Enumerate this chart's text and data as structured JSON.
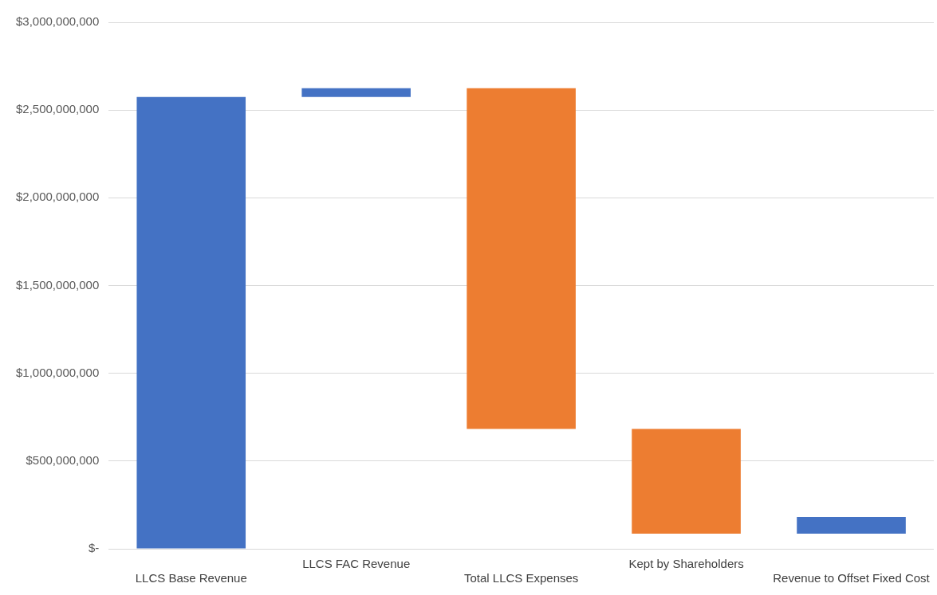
{
  "chart_data": {
    "type": "bar",
    "categories": [
      "LLCS Base Revenue",
      "LLCS FAC Revenue",
      "Total LLCS Expenses",
      "Kept by Shareholders",
      "Revenue to Offset Fixed Cost"
    ],
    "base": [
      0,
      2575000000,
      683000000,
      86000000,
      86000000
    ],
    "values": [
      2575000000,
      50000000,
      1942000000,
      597000000,
      95000000
    ],
    "colors": [
      "#4472c4",
      "#4472c4",
      "#ed7d31",
      "#ed7d31",
      "#4472c4"
    ],
    "ylim": [
      0,
      3000000000
    ],
    "yticks": [
      {
        "value": 0,
        "label": "$-"
      },
      {
        "value": 500000000,
        "label": "$500,000,000"
      },
      {
        "value": 1000000000,
        "label": "$1,000,000,000"
      },
      {
        "value": 1500000000,
        "label": "$1,500,000,000"
      },
      {
        "value": 2000000000,
        "label": "$2,000,000,000"
      },
      {
        "value": 2500000000,
        "label": "$2,500,000,000"
      },
      {
        "value": 3000000000,
        "label": "$3,000,000,000"
      }
    ],
    "grid": "y",
    "legend": false
  }
}
